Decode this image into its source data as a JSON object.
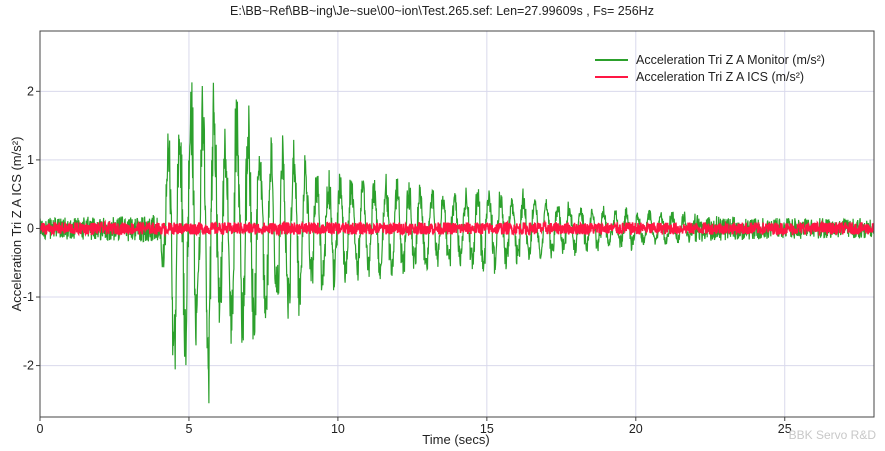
{
  "chart_data": {
    "type": "line",
    "title": "E:\\BB~Ref\\BB~ing\\Je~sue\\00~ion\\Test.265.sef: Len=27.99609s , Fs= 256Hz",
    "xlabel": "Time (secs)",
    "ylabel": "Acceleration Tri Z A ICS (m/s²)",
    "xlim": [
      0,
      27.99609
    ],
    "ylim": [
      -2.75,
      2.88
    ],
    "xticks": [
      0,
      5,
      10,
      15,
      20,
      25
    ],
    "yticks": [
      -2,
      -1,
      0,
      1,
      2
    ],
    "grid": true,
    "legend_position": "top-right",
    "series": [
      {
        "name": "Acceleration Tri Z A Monitor (m/s²)",
        "color": "#2ca02c",
        "envelope": {
          "t": [
            0,
            4.0,
            4.3,
            4.5,
            4.7,
            5.0,
            5.3,
            5.6,
            5.9,
            6.2,
            6.6,
            7.0,
            7.5,
            8.0,
            8.5,
            9.0,
            10.0,
            11.0,
            12.0,
            13.0,
            14.0,
            15.0,
            16.0,
            17.0,
            18.0,
            19.0,
            20.0,
            21.0,
            22.0,
            23.0,
            24.0,
            26.0,
            28.0
          ],
          "amplitude": [
            0.15,
            0.2,
            1.4,
            2.7,
            2.0,
            2.5,
            1.8,
            2.9,
            2.2,
            1.5,
            2.3,
            1.8,
            1.6,
            1.3,
            1.6,
            1.0,
            0.9,
            0.75,
            0.8,
            0.65,
            0.6,
            0.7,
            0.6,
            0.45,
            0.35,
            0.3,
            0.3,
            0.25,
            0.2,
            0.18,
            0.16,
            0.15,
            0.15
          ]
        }
      },
      {
        "name": "Acceleration Tri Z A ICS (m/s²)",
        "color": "#ff1744",
        "envelope": {
          "t": [
            0,
            28.0
          ],
          "amplitude": [
            0.09,
            0.09
          ]
        }
      }
    ]
  },
  "watermark": "BBK Servo R&D"
}
